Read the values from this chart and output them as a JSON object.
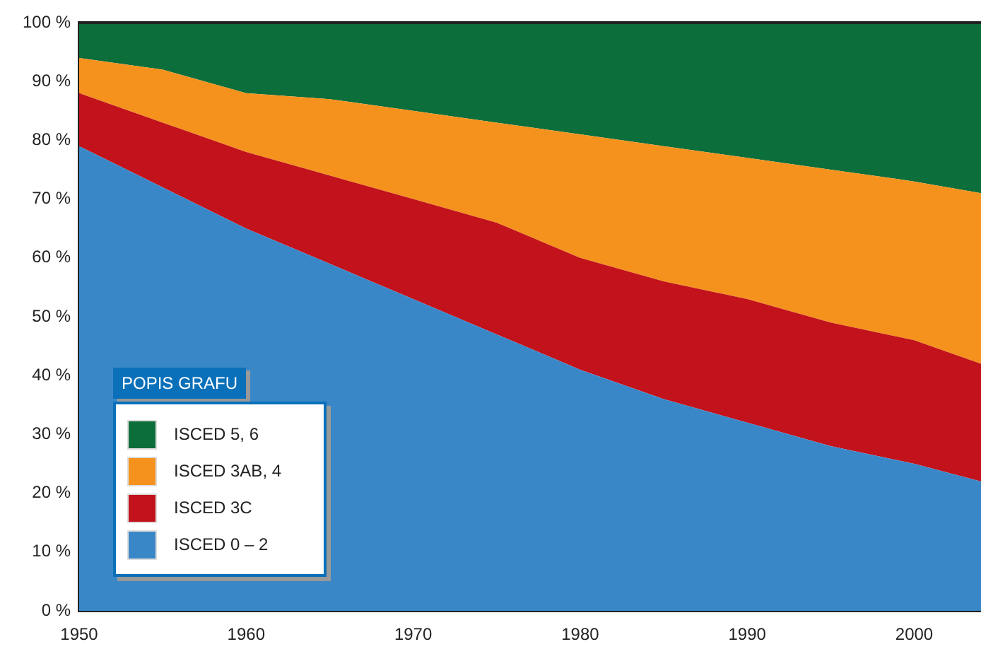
{
  "chart_data": {
    "type": "area",
    "stacked": true,
    "legend": "bottom left",
    "legend_title": "POPIS GRAFU",
    "x": [
      1950,
      1955,
      1960,
      1965,
      1970,
      1975,
      1980,
      1985,
      1990,
      1995,
      2000,
      2004
    ],
    "xlim": [
      1950,
      2004
    ],
    "xticks": [
      1950,
      1960,
      1970,
      1980,
      1990,
      2000
    ],
    "ylim": [
      0,
      100
    ],
    "yticks": [
      {
        "value": 0,
        "label": "0 %"
      },
      {
        "value": 10,
        "label": "10 %"
      },
      {
        "value": 20,
        "label": "20 %"
      },
      {
        "value": 30,
        "label": "30 %"
      },
      {
        "value": 40,
        "label": "40 %"
      },
      {
        "value": 50,
        "label": "50 %"
      },
      {
        "value": 60,
        "label": "60 %"
      },
      {
        "value": 70,
        "label": "70 %"
      },
      {
        "value": 80,
        "label": "80 %"
      },
      {
        "value": 90,
        "label": "90 %"
      },
      {
        "value": 100,
        "label": "100 %"
      }
    ],
    "grid": false,
    "series": [
      {
        "name": "ISCED 0 – 2",
        "color": "#3a87c8",
        "values": [
          79,
          72,
          65,
          59,
          53,
          47,
          41,
          36,
          32,
          28,
          25,
          22
        ]
      },
      {
        "name": "ISCED 3C",
        "color": "#c2121b",
        "values": [
          9,
          11,
          13,
          15,
          17,
          19,
          19,
          20,
          21,
          21,
          21,
          20
        ]
      },
      {
        "name": "ISCED 3AB, 4",
        "color": "#f5921e",
        "values": [
          6,
          9,
          10,
          13,
          15,
          17,
          21,
          23,
          24,
          26,
          27,
          29
        ]
      },
      {
        "name": "ISCED 5, 6",
        "color": "#0c6e3a",
        "values": [
          6,
          8,
          12,
          13,
          15,
          17,
          19,
          21,
          23,
          25,
          27,
          29
        ]
      }
    ]
  }
}
